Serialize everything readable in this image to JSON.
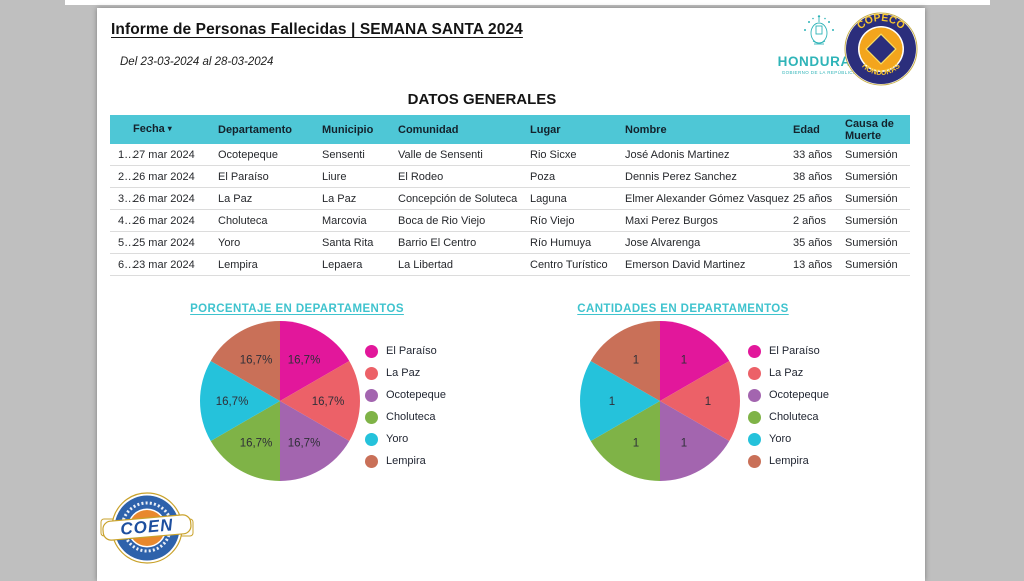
{
  "page": {
    "title": "Informe de Personas Fallecidas | SEMANA SANTA 2024",
    "subtitle": "Del 23-03-2024 al 28-03-2024",
    "section_title": "DATOS GENERALES"
  },
  "logos": {
    "honduras": {
      "name": "HONDURAS",
      "tagline": "GOBIERNO DE LA REPÚBLICA"
    },
    "copeco": {
      "top": "COPECO",
      "bottom": "HONDURAS"
    },
    "coen": {
      "name": "COEN"
    }
  },
  "colors": {
    "canvas_bg": "#bfbfbf",
    "page_bg": "#ffffff",
    "table_header_bg": "#4ec7d6",
    "chart_title": "#3fc3ce",
    "honduras_teal": "#2fb4b8",
    "copeco_navy": "#2b2e7c",
    "copeco_orange": "#f3a51d",
    "coen_blue": "#2e62ab",
    "coen_orange": "#e8882d"
  },
  "table": {
    "sort_icon": "▾",
    "columns": [
      "Fecha",
      "Departamento",
      "Municipio",
      "Comunidad",
      "Lugar",
      "Nombre",
      "Edad",
      "Causa de Muerte"
    ],
    "row_keys": [
      "fecha",
      "departamento",
      "municipio",
      "comunidad",
      "lugar",
      "nombre",
      "edad",
      "causa"
    ],
    "rows": [
      {
        "num": "1…",
        "fecha": "27 mar 2024",
        "departamento": "Ocotepeque",
        "municipio": "Sensenti",
        "comunidad": "Valle de Sensenti",
        "lugar": "Rio Sicxe",
        "nombre": "José Adonis Martinez",
        "edad": "33 años",
        "causa": "Sumersión"
      },
      {
        "num": "2…",
        "fecha": "26 mar 2024",
        "departamento": "El Paraíso",
        "municipio": "Liure",
        "comunidad": "El Rodeo",
        "lugar": "Poza",
        "nombre": "Dennis Perez Sanchez",
        "edad": "38 años",
        "causa": "Sumersión"
      },
      {
        "num": "3…",
        "fecha": "26 mar 2024",
        "departamento": "La Paz",
        "municipio": "La Paz",
        "comunidad": "Concepción de Soluteca",
        "lugar": "Laguna",
        "nombre": "Elmer Alexander Gómez Vasquez",
        "edad": "25 años",
        "causa": "Sumersión"
      },
      {
        "num": "4…",
        "fecha": "26 mar 2024",
        "departamento": "Choluteca",
        "municipio": "Marcovia",
        "comunidad": "Boca de Rio Viejo",
        "lugar": "Río Viejo",
        "nombre": "Maxi Perez Burgos",
        "edad": "2 años",
        "causa": "Sumersión"
      },
      {
        "num": "5…",
        "fecha": "25 mar 2024",
        "departamento": "Yoro",
        "municipio": "Santa Rita",
        "comunidad": "Barrio El Centro",
        "lugar": "Río Humuya",
        "nombre": "Jose Alvarenga",
        "edad": "35 años",
        "causa": "Sumersión"
      },
      {
        "num": "6…",
        "fecha": "23 mar 2024",
        "departamento": "Lempira",
        "municipio": "Lepaera",
        "comunidad": "La Libertad",
        "lugar": "Centro Turístico",
        "nombre": "Emerson David Martinez",
        "edad": "13 años",
        "causa": "Sumersión"
      }
    ]
  },
  "chart_data": [
    {
      "type": "pie",
      "title": "PORCENTAJE EN DEPARTAMENTOS",
      "labels": [
        "El Paraíso",
        "La Paz",
        "Ocotepeque",
        "Choluteca",
        "Yoro",
        "Lempira"
      ],
      "values": [
        16.7,
        16.7,
        16.7,
        16.7,
        16.7,
        16.7
      ],
      "slice_labels": [
        "16,7%",
        "16,7%",
        "16,7%",
        "16,7%",
        "16,7%",
        "16,7%"
      ],
      "colors": [
        "#e2179b",
        "#ec6168",
        "#a365af",
        "#7fb347",
        "#25c2db",
        "#c97058"
      ],
      "legend_position": "right",
      "start_angle_deg": 0
    },
    {
      "type": "pie",
      "title": "CANTIDADES EN DEPARTAMENTOS",
      "labels": [
        "El Paraíso",
        "La Paz",
        "Ocotepeque",
        "Choluteca",
        "Yoro",
        "Lempira"
      ],
      "values": [
        1,
        1,
        1,
        1,
        1,
        1
      ],
      "slice_labels": [
        "1",
        "1",
        "1",
        "1",
        "1",
        "1"
      ],
      "colors": [
        "#e2179b",
        "#ec6168",
        "#a365af",
        "#7fb347",
        "#25c2db",
        "#c97058"
      ],
      "legend_position": "right",
      "start_angle_deg": 0
    }
  ]
}
